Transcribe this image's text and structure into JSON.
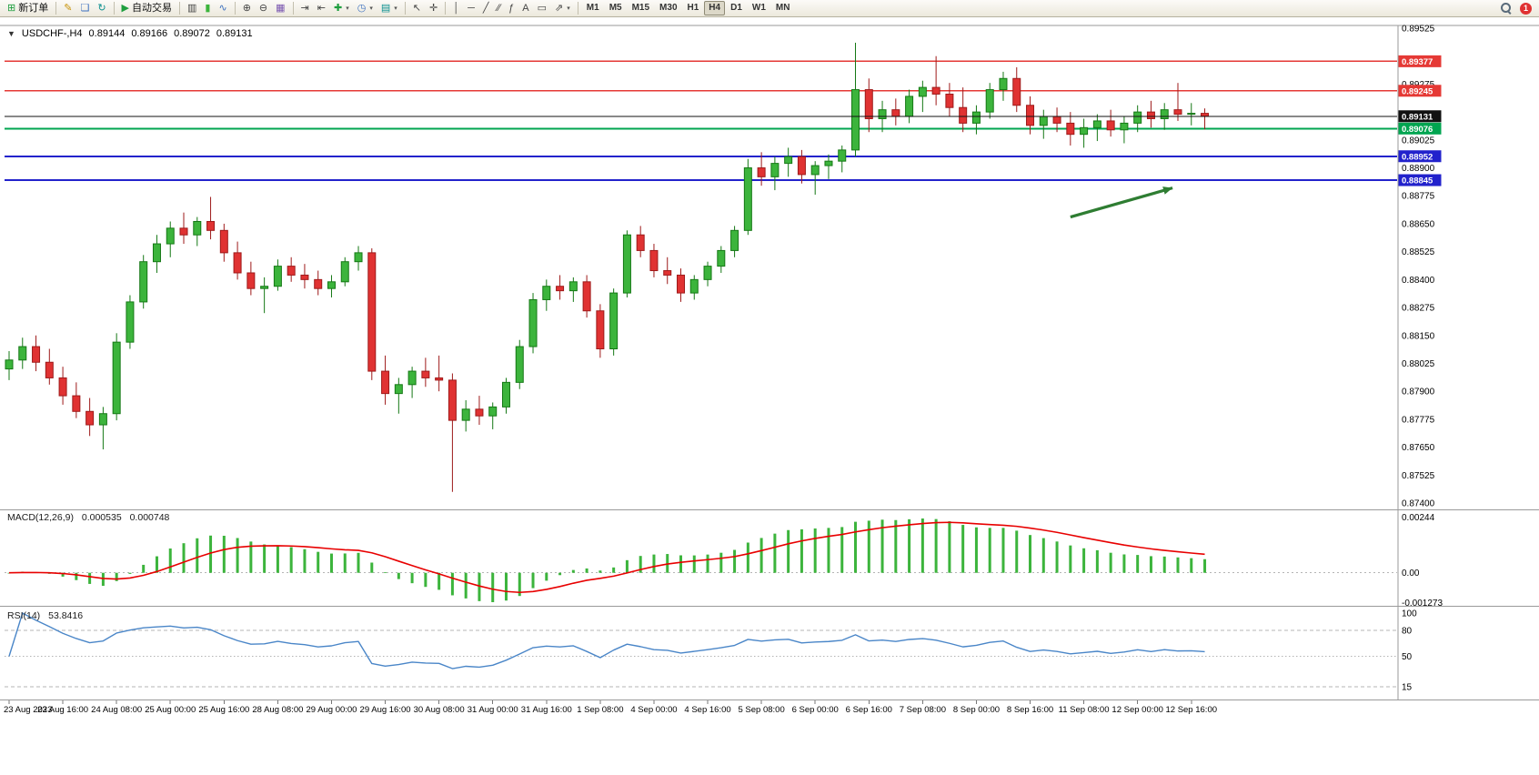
{
  "colors": {
    "candle_up_fill": "#3cb43c",
    "candle_up_stroke": "#157815",
    "candle_down_fill": "#e03232",
    "candle_down_stroke": "#9e1a1a",
    "macd_histogram": "#3cb43c",
    "macd_signal": "#e80000",
    "rsi_line": "#4a86c8",
    "grid": "#b4b4b4",
    "pane_border": "#9a9a9a",
    "axis_text": "#000000",
    "badge_text": "#ffffff"
  },
  "icons": {
    "collapse": "▼",
    "new_order": "⊞",
    "metaeditor": "✎",
    "print": "❏",
    "refresh": "↻",
    "autotrading": "▶",
    "bar_chart": "▥",
    "candle_chart": "▮",
    "line_chart": "∿",
    "zoom_in": "⊕",
    "zoom_out": "⊖",
    "tile_windows": "▦",
    "auto_scroll": "⇥",
    "chart_shift": "⇤",
    "add_indicator": "✚",
    "periods": "◷",
    "templates": "▤",
    "cursor": "↖",
    "crosshair": "✛",
    "vline": "│",
    "hline": "─",
    "trendline": "╱",
    "channel": "∕∕",
    "fibo": "ƒ",
    "text": "A",
    "label": "▭",
    "arrows": "⇗",
    "caret": "▾"
  },
  "toolbar": {
    "new_order_label": "新订单",
    "autotrading_label": "自动交易",
    "timeframes": [
      "M1",
      "M5",
      "M15",
      "M30",
      "H1",
      "H4",
      "D1",
      "W1",
      "MN"
    ],
    "active_timeframe": "H4",
    "notification_count": "1"
  },
  "chart": {
    "title": {
      "symbol_period": "USDCHF-,H4",
      "open": "0.89144",
      "high": "0.89166",
      "low": "0.89072",
      "close": "0.89131"
    },
    "hlines": [
      {
        "price": 0.89377,
        "label": "0.89377",
        "color": "#e53935",
        "width": 1.4,
        "top": false
      },
      {
        "price": 0.89245,
        "label": "0.89245",
        "color": "#e53935",
        "width": 1.4,
        "top": false
      },
      {
        "price": 0.89131,
        "label": "0.89131",
        "color": "#111111",
        "width": 1.0,
        "top": true
      },
      {
        "price": 0.89076,
        "label": "0.89076",
        "color": "#00a550",
        "width": 2.0,
        "top": false
      },
      {
        "price": 0.88952,
        "label": "0.88952",
        "color": "#2222cc",
        "width": 2.0,
        "top": false
      },
      {
        "price": 0.88845,
        "label": "0.88845",
        "color": "#2222cc",
        "width": 2.0,
        "top": false
      }
    ],
    "arrow": {
      "from_bar": 79,
      "from_price": 0.8868,
      "to_bar": 86.6,
      "to_price": 0.8881,
      "color": "#2e7d32"
    }
  },
  "chart_data": {
    "type": "candlestick",
    "symbol": "USDCHF",
    "timeframe": "H4",
    "price_axis_labels": [
      "0.89525",
      "0.89400",
      "0.89275",
      "0.89150",
      "0.89025",
      "0.88900",
      "0.88775",
      "0.88650",
      "0.88525",
      "0.88400",
      "0.88275",
      "0.88150",
      "0.88025",
      "0.87900",
      "0.87775",
      "0.87650",
      "0.87525",
      "0.87400"
    ],
    "price_axis_range": [
      0.874,
      0.89525
    ],
    "label_every_n_bars": 4,
    "time_labels": [
      "23 Aug 2023",
      "23 Aug 16:00",
      "24 Aug 08:00",
      "25 Aug 00:00",
      "25 Aug 16:00",
      "28 Aug 08:00",
      "29 Aug 00:00",
      "29 Aug 16:00",
      "30 Aug 08:00",
      "31 Aug 00:00",
      "31 Aug 16:00",
      "1 Sep 08:00",
      "4 Sep 00:00",
      "4 Sep 16:00",
      "5 Sep 08:00",
      "6 Sep 00:00",
      "6 Sep 16:00",
      "7 Sep 08:00",
      "8 Sep 00:00",
      "8 Sep 16:00",
      "11 Sep 08:00",
      "12 Sep 00:00",
      "12 Sep 16:00"
    ],
    "ohlc": [
      [
        0.88,
        0.8808,
        0.8795,
        0.8804
      ],
      [
        0.8804,
        0.8814,
        0.88,
        0.881
      ],
      [
        0.881,
        0.8815,
        0.8799,
        0.8803
      ],
      [
        0.8803,
        0.8809,
        0.8793,
        0.8796
      ],
      [
        0.8796,
        0.8801,
        0.8784,
        0.8788
      ],
      [
        0.8788,
        0.8794,
        0.8778,
        0.8781
      ],
      [
        0.8781,
        0.8787,
        0.877,
        0.8775
      ],
      [
        0.8775,
        0.8783,
        0.8764,
        0.878
      ],
      [
        0.878,
        0.8816,
        0.8777,
        0.8812
      ],
      [
        0.8812,
        0.8833,
        0.8809,
        0.883
      ],
      [
        0.883,
        0.8851,
        0.8827,
        0.8848
      ],
      [
        0.8848,
        0.886,
        0.8843,
        0.8856
      ],
      [
        0.8856,
        0.8866,
        0.885,
        0.8863
      ],
      [
        0.8863,
        0.887,
        0.8856,
        0.886
      ],
      [
        0.886,
        0.8868,
        0.8855,
        0.8866
      ],
      [
        0.8866,
        0.8877,
        0.8858,
        0.8862
      ],
      [
        0.8862,
        0.8865,
        0.8848,
        0.8852
      ],
      [
        0.8852,
        0.8857,
        0.884,
        0.8843
      ],
      [
        0.8843,
        0.8848,
        0.8833,
        0.8836
      ],
      [
        0.8836,
        0.8841,
        0.8825,
        0.8837
      ],
      [
        0.8837,
        0.8849,
        0.8835,
        0.8846
      ],
      [
        0.8846,
        0.885,
        0.8839,
        0.8842
      ],
      [
        0.8842,
        0.8847,
        0.8836,
        0.884
      ],
      [
        0.884,
        0.8844,
        0.8833,
        0.8836
      ],
      [
        0.8836,
        0.8842,
        0.8832,
        0.8839
      ],
      [
        0.8839,
        0.885,
        0.8837,
        0.8848
      ],
      [
        0.8848,
        0.8855,
        0.8844,
        0.8852
      ],
      [
        0.8852,
        0.8854,
        0.8795,
        0.8799
      ],
      [
        0.8799,
        0.8806,
        0.8784,
        0.8789
      ],
      [
        0.8789,
        0.8796,
        0.878,
        0.8793
      ],
      [
        0.8793,
        0.8801,
        0.8787,
        0.8799
      ],
      [
        0.8799,
        0.8805,
        0.8792,
        0.8796
      ],
      [
        0.8796,
        0.8806,
        0.879,
        0.8795
      ],
      [
        0.8795,
        0.8798,
        0.8745,
        0.8777
      ],
      [
        0.8777,
        0.8786,
        0.8772,
        0.8782
      ],
      [
        0.8782,
        0.8788,
        0.8775,
        0.8779
      ],
      [
        0.8779,
        0.8785,
        0.8773,
        0.8783
      ],
      [
        0.8783,
        0.8796,
        0.878,
        0.8794
      ],
      [
        0.8794,
        0.8813,
        0.8791,
        0.881
      ],
      [
        0.881,
        0.8834,
        0.8807,
        0.8831
      ],
      [
        0.8831,
        0.884,
        0.8826,
        0.8837
      ],
      [
        0.8837,
        0.8842,
        0.8831,
        0.8835
      ],
      [
        0.8835,
        0.8841,
        0.883,
        0.8839
      ],
      [
        0.8839,
        0.8842,
        0.8823,
        0.8826
      ],
      [
        0.8826,
        0.8829,
        0.8805,
        0.8809
      ],
      [
        0.8809,
        0.8836,
        0.8806,
        0.8834
      ],
      [
        0.8834,
        0.8862,
        0.8832,
        0.886
      ],
      [
        0.886,
        0.8864,
        0.885,
        0.8853
      ],
      [
        0.8853,
        0.8856,
        0.8841,
        0.8844
      ],
      [
        0.8844,
        0.885,
        0.8838,
        0.8842
      ],
      [
        0.8842,
        0.8845,
        0.883,
        0.8834
      ],
      [
        0.8834,
        0.8842,
        0.8831,
        0.884
      ],
      [
        0.884,
        0.8848,
        0.8837,
        0.8846
      ],
      [
        0.8846,
        0.8855,
        0.8843,
        0.8853
      ],
      [
        0.8853,
        0.8864,
        0.885,
        0.8862
      ],
      [
        0.8862,
        0.8894,
        0.886,
        0.889
      ],
      [
        0.889,
        0.8897,
        0.8882,
        0.8886
      ],
      [
        0.8886,
        0.8895,
        0.888,
        0.8892
      ],
      [
        0.8892,
        0.8899,
        0.8886,
        0.8895
      ],
      [
        0.8895,
        0.8898,
        0.8883,
        0.8887
      ],
      [
        0.8887,
        0.8893,
        0.8878,
        0.8891
      ],
      [
        0.8891,
        0.8896,
        0.8885,
        0.8893
      ],
      [
        0.8893,
        0.89,
        0.8888,
        0.8898
      ],
      [
        0.8898,
        0.8946,
        0.8895,
        0.8925
      ],
      [
        0.8925,
        0.893,
        0.8906,
        0.8912
      ],
      [
        0.8912,
        0.892,
        0.8906,
        0.8916
      ],
      [
        0.8916,
        0.8921,
        0.8909,
        0.8913
      ],
      [
        0.8913,
        0.8925,
        0.891,
        0.8922
      ],
      [
        0.8922,
        0.8929,
        0.8915,
        0.8926
      ],
      [
        0.8926,
        0.894,
        0.8918,
        0.8923
      ],
      [
        0.8923,
        0.8928,
        0.8913,
        0.8917
      ],
      [
        0.8917,
        0.8926,
        0.8906,
        0.891
      ],
      [
        0.891,
        0.8918,
        0.8905,
        0.8915
      ],
      [
        0.8915,
        0.8928,
        0.8912,
        0.8925
      ],
      [
        0.8925,
        0.8933,
        0.892,
        0.893
      ],
      [
        0.893,
        0.8935,
        0.8915,
        0.8918
      ],
      [
        0.8918,
        0.8922,
        0.8905,
        0.8909
      ],
      [
        0.8909,
        0.8916,
        0.8903,
        0.8913
      ],
      [
        0.8913,
        0.8917,
        0.8906,
        0.891
      ],
      [
        0.891,
        0.8915,
        0.89,
        0.8905
      ],
      [
        0.8905,
        0.8912,
        0.8899,
        0.8908
      ],
      [
        0.8908,
        0.8914,
        0.8902,
        0.8911
      ],
      [
        0.8911,
        0.8916,
        0.8904,
        0.8907
      ],
      [
        0.8907,
        0.8913,
        0.8901,
        0.891
      ],
      [
        0.891,
        0.8918,
        0.8906,
        0.8915
      ],
      [
        0.8915,
        0.892,
        0.8908,
        0.8912
      ],
      [
        0.8912,
        0.8919,
        0.8907,
        0.8916
      ],
      [
        0.8916,
        0.8928,
        0.8911,
        0.8914
      ],
      [
        0.8914,
        0.8919,
        0.8909,
        0.89144
      ],
      [
        0.89144,
        0.89166,
        0.89072,
        0.89131
      ]
    ],
    "indicators": {
      "macd": {
        "name": "MACD(12,26,9)",
        "value_main": "0.000535",
        "value_signal": "0.000748",
        "params": [
          12,
          26,
          9
        ],
        "axis_max_label": "0.00244",
        "axis_zero_label": "0.00",
        "axis_min_label": "-0.001273"
      },
      "rsi": {
        "name": "RSI(14)",
        "value": "53.8416",
        "period": 14,
        "levels": [
          80,
          50,
          15
        ],
        "axis_labels": [
          "100",
          "80",
          "50",
          "15"
        ]
      }
    }
  }
}
